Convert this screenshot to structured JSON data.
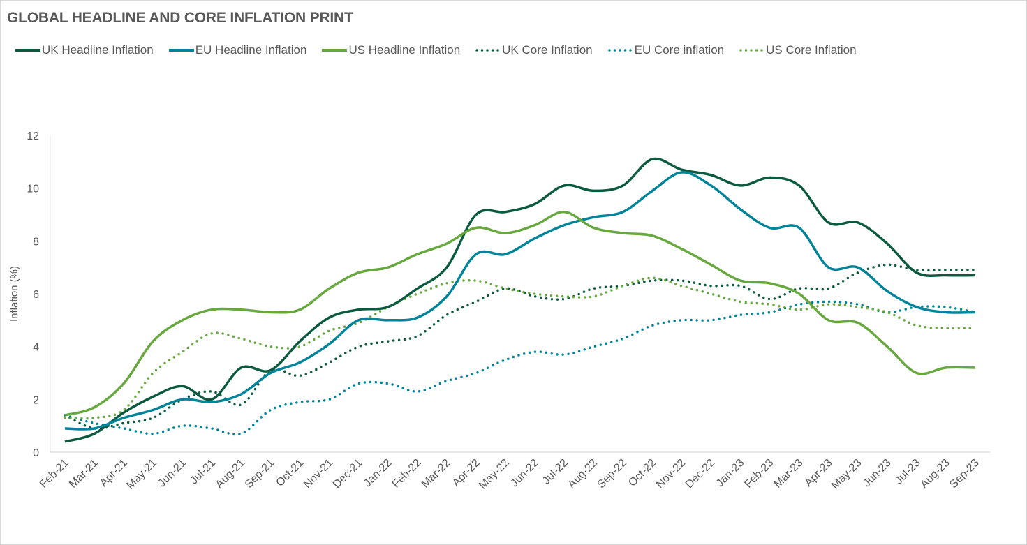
{
  "chart_data": {
    "type": "line",
    "title": "GLOBAL HEADLINE AND CORE INFLATION PRINT",
    "xlabel": "",
    "ylabel": "Inflation (%)",
    "ylim": [
      0,
      12
    ],
    "yticks": [
      0,
      2,
      4,
      6,
      8,
      10,
      12
    ],
    "grid": false,
    "legend_position": "top-left",
    "categories": [
      "Feb-21",
      "Mar-21",
      "Apr-21",
      "May-21",
      "Jun-21",
      "Jul-21",
      "Aug-21",
      "Sep-21",
      "Oct-21",
      "Nov-21",
      "Dec-21",
      "Jan-22",
      "Feb-22",
      "Mar-22",
      "Apr-22",
      "May-22",
      "Jun-22",
      "Jul-22",
      "Aug-22",
      "Sep-22",
      "Oct-22",
      "Nov-22",
      "Dec-22",
      "Jan-23",
      "Feb-23",
      "Mar-23",
      "Apr-23",
      "May-23",
      "Jun-23",
      "Jul-23",
      "Aug-23",
      "Sep-23"
    ],
    "series": [
      {
        "name": "UK Headline Inflation",
        "style": "solid",
        "color": "#0b5a40",
        "values": [
          0.4,
          0.7,
          1.5,
          2.1,
          2.5,
          2.0,
          3.2,
          3.1,
          4.2,
          5.1,
          5.4,
          5.5,
          6.2,
          7.0,
          9.0,
          9.1,
          9.4,
          10.1,
          9.9,
          10.1,
          11.1,
          10.7,
          10.5,
          10.1,
          10.4,
          10.1,
          8.7,
          8.7,
          7.9,
          6.8,
          6.7,
          6.7
        ]
      },
      {
        "name": "EU Headline Inflation",
        "style": "solid",
        "color": "#00849a",
        "values": [
          0.9,
          0.9,
          1.3,
          1.6,
          2.0,
          1.9,
          2.2,
          3.0,
          3.4,
          4.1,
          5.0,
          5.0,
          5.1,
          5.9,
          7.5,
          7.5,
          8.1,
          8.6,
          8.9,
          9.1,
          9.9,
          10.6,
          10.1,
          9.2,
          8.5,
          8.5,
          7.0,
          7.0,
          6.1,
          5.5,
          5.3,
          5.3
        ]
      },
      {
        "name": "US Headline Inflation",
        "style": "solid",
        "color": "#67a83f",
        "values": [
          1.4,
          1.7,
          2.6,
          4.2,
          5.0,
          5.4,
          5.4,
          5.3,
          5.4,
          6.2,
          6.8,
          7.0,
          7.5,
          7.9,
          8.5,
          8.3,
          8.6,
          9.1,
          8.5,
          8.3,
          8.2,
          7.7,
          7.1,
          6.5,
          6.4,
          6.0,
          5.0,
          4.9,
          4.0,
          3.0,
          3.2,
          3.2
        ]
      },
      {
        "name": "UK Core Inflation",
        "style": "dotted",
        "color": "#0b5a40",
        "values": [
          1.4,
          0.9,
          1.1,
          1.3,
          2.0,
          2.3,
          1.8,
          3.1,
          2.9,
          3.4,
          4.0,
          4.2,
          4.4,
          5.2,
          5.7,
          6.2,
          5.9,
          5.8,
          6.2,
          6.3,
          6.5,
          6.5,
          6.3,
          6.3,
          5.8,
          6.2,
          6.2,
          6.8,
          7.1,
          6.9,
          6.9,
          6.9
        ]
      },
      {
        "name": "EU Core inflation",
        "style": "dotted",
        "color": "#00849a",
        "values": [
          1.4,
          1.1,
          0.9,
          0.7,
          1.0,
          0.9,
          0.7,
          1.6,
          1.9,
          2.0,
          2.6,
          2.6,
          2.3,
          2.7,
          3.0,
          3.5,
          3.8,
          3.7,
          4.0,
          4.3,
          4.8,
          5.0,
          5.0,
          5.2,
          5.3,
          5.6,
          5.7,
          5.6,
          5.3,
          5.5,
          5.5,
          5.3
        ]
      },
      {
        "name": "US Core Inflation",
        "style": "dotted",
        "color": "#67a83f",
        "values": [
          1.3,
          1.3,
          1.6,
          3.0,
          3.8,
          4.5,
          4.3,
          4.0,
          4.0,
          4.6,
          4.9,
          5.5,
          6.0,
          6.4,
          6.5,
          6.2,
          6.0,
          5.9,
          5.9,
          6.3,
          6.6,
          6.3,
          6.0,
          5.7,
          5.6,
          5.4,
          5.6,
          5.5,
          5.3,
          4.8,
          4.7,
          4.7
        ]
      }
    ]
  }
}
